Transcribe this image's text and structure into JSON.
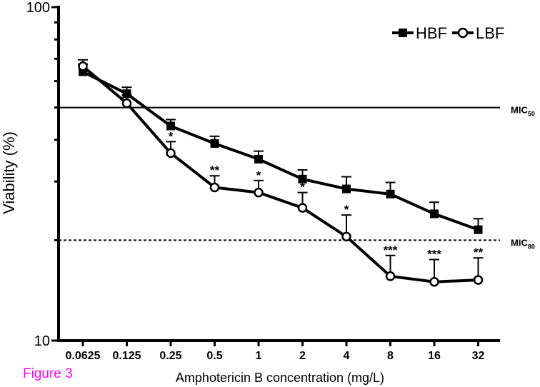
{
  "figure_label": "Figure 3",
  "chart_data": {
    "type": "line",
    "xlabel": "Amphotericin B concentration (mg/L)",
    "ylabel": "Viability (%)",
    "yscale": "log",
    "ylim": [
      10,
      100
    ],
    "yticks": [
      10,
      100
    ],
    "ytick_labels": [
      "10",
      "100"
    ],
    "categories": [
      "0.0625",
      "0.125",
      "0.25",
      "0.5",
      "1",
      "2",
      "4",
      "8",
      "16",
      "32"
    ],
    "legend_position": "top-right",
    "series": [
      {
        "name": "HBF",
        "marker": "filled-square",
        "values": [
          64,
          55,
          44,
          39,
          35,
          30.5,
          28.5,
          27.5,
          24,
          21.5
        ],
        "error_upper": [
          67.5,
          57.5,
          46,
          41,
          37,
          32.5,
          31,
          29.8,
          26,
          23.2
        ]
      },
      {
        "name": "LBF",
        "marker": "open-circle",
        "values": [
          66.5,
          51.5,
          36.5,
          28.8,
          27.8,
          25,
          20.5,
          15.6,
          15,
          15.2
        ],
        "error_upper": [
          69.5,
          54.5,
          39.5,
          31.2,
          30.2,
          27.8,
          23.8,
          18,
          17.5,
          17.7
        ],
        "significance": [
          "",
          "",
          "*",
          "**",
          "*",
          "*",
          "*",
          "***",
          "***",
          "**"
        ]
      }
    ],
    "reference_lines": [
      {
        "label": "MIC",
        "subscript": "50",
        "value": 50,
        "style": "solid"
      },
      {
        "label": "MIC",
        "subscript": "80",
        "value": 20,
        "style": "dashed"
      }
    ]
  }
}
